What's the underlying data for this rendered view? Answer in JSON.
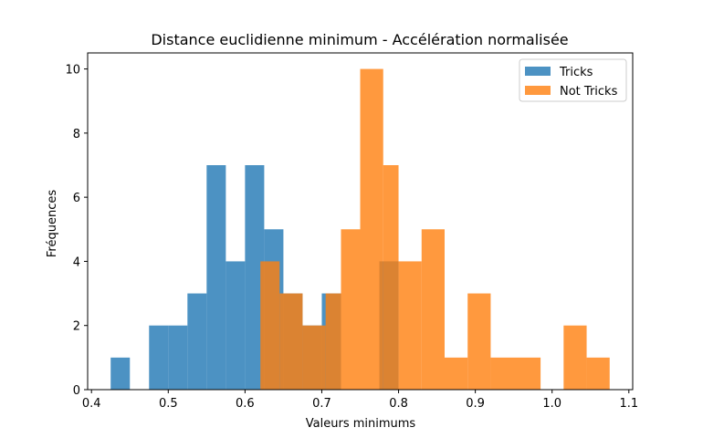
{
  "chart_data": {
    "type": "bar",
    "subtype": "histogram",
    "title": "Distance euclidienne minimum - Accélération normalisée",
    "xlabel": "Valeurs minimums",
    "ylabel": "Fréquences",
    "xlim": [
      0.395,
      1.105
    ],
    "ylim": [
      0,
      10.5
    ],
    "xticks": [
      "0.4",
      "0.5",
      "0.6",
      "0.7",
      "0.8",
      "0.9",
      "1.0",
      "1.1"
    ],
    "yticks": [
      "0",
      "2",
      "4",
      "6",
      "8",
      "10"
    ],
    "legend_position": "top-right",
    "grid": false,
    "bar_opacity": 0.8,
    "series": [
      {
        "name": "Tricks",
        "color": "#1f77b4",
        "bins": [
          {
            "x0": 0.425,
            "x1": 0.45,
            "count": 1
          },
          {
            "x0": 0.45,
            "x1": 0.475,
            "count": 0
          },
          {
            "x0": 0.475,
            "x1": 0.5,
            "count": 2
          },
          {
            "x0": 0.5,
            "x1": 0.525,
            "count": 2
          },
          {
            "x0": 0.525,
            "x1": 0.55,
            "count": 3
          },
          {
            "x0": 0.55,
            "x1": 0.575,
            "count": 7
          },
          {
            "x0": 0.575,
            "x1": 0.6,
            "count": 4
          },
          {
            "x0": 0.6,
            "x1": 0.625,
            "count": 7
          },
          {
            "x0": 0.625,
            "x1": 0.65,
            "count": 5
          },
          {
            "x0": 0.65,
            "x1": 0.675,
            "count": 3
          },
          {
            "x0": 0.675,
            "x1": 0.7,
            "count": 2
          },
          {
            "x0": 0.7,
            "x1": 0.725,
            "count": 3
          },
          {
            "x0": 0.725,
            "x1": 0.75,
            "count": 0
          },
          {
            "x0": 0.75,
            "x1": 0.775,
            "count": 0
          },
          {
            "x0": 0.775,
            "x1": 0.8,
            "count": 4
          }
        ]
      },
      {
        "name": "Not Tricks",
        "color": "#ff7f0e",
        "bins": [
          {
            "x0": 0.62,
            "x1": 0.645,
            "count": 4
          },
          {
            "x0": 0.645,
            "x1": 0.675,
            "count": 3
          },
          {
            "x0": 0.675,
            "x1": 0.705,
            "count": 2
          },
          {
            "x0": 0.705,
            "x1": 0.725,
            "count": 3
          },
          {
            "x0": 0.725,
            "x1": 0.75,
            "count": 5
          },
          {
            "x0": 0.75,
            "x1": 0.78,
            "count": 10
          },
          {
            "x0": 0.78,
            "x1": 0.8,
            "count": 7
          },
          {
            "x0": 0.8,
            "x1": 0.83,
            "count": 4
          },
          {
            "x0": 0.83,
            "x1": 0.86,
            "count": 5
          },
          {
            "x0": 0.86,
            "x1": 0.89,
            "count": 1
          },
          {
            "x0": 0.89,
            "x1": 0.92,
            "count": 3
          },
          {
            "x0": 0.92,
            "x1": 0.985,
            "count": 1
          },
          {
            "x0": 0.985,
            "x1": 1.015,
            "count": 0
          },
          {
            "x0": 1.015,
            "x1": 1.045,
            "count": 2
          },
          {
            "x0": 1.045,
            "x1": 1.075,
            "count": 1
          }
        ]
      }
    ]
  }
}
